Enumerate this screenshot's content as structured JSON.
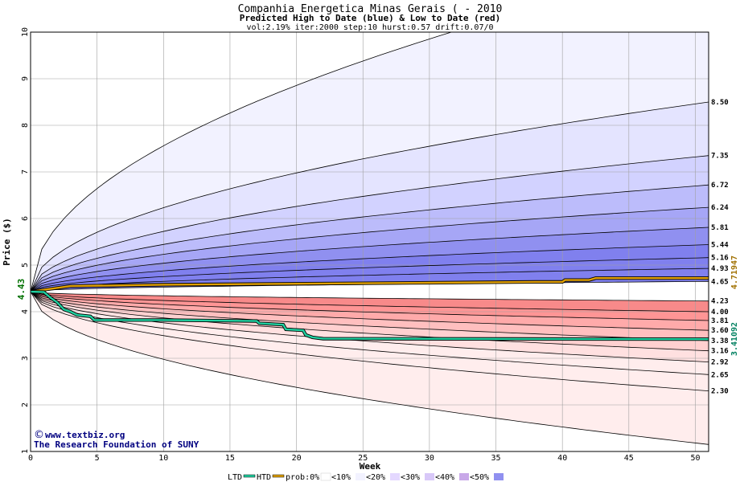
{
  "chart_data": {
    "type": "area",
    "title": "Companhia Energetica Minas Gerais ( - 2010",
    "subtitle": "Predicted High to Date (blue) &  Low to Date (red)",
    "params": "vol:2.19% iter:2000 step:10 hurst:0.57 drift:0.07/0",
    "xlabel": "Week",
    "ylabel": "Price ($)",
    "xlim": [
      0,
      51
    ],
    "ylim": [
      1,
      10
    ],
    "xticks": [
      "0",
      "5",
      "10",
      "15",
      "20",
      "25",
      "30",
      "35",
      "40",
      "45",
      "50"
    ],
    "yticks": [
      "1",
      "2",
      "3",
      "4",
      "5",
      "6",
      "7",
      "8",
      "9",
      "10"
    ],
    "start_price": "4.43",
    "start_value": 4.43,
    "high_percentile_end_values": [
      {
        "label": "8.50",
        "value": 8.5
      },
      {
        "label": "7.35",
        "value": 7.35
      },
      {
        "label": "6.72",
        "value": 6.72
      },
      {
        "label": "6.24",
        "value": 6.24
      },
      {
        "label": "5.81",
        "value": 5.81
      },
      {
        "label": "5.44",
        "value": 5.44
      },
      {
        "label": "5.16",
        "value": 5.16
      },
      {
        "label": "4.93",
        "value": 4.93
      }
    ],
    "low_percentile_end_values": [
      {
        "label": "4.23",
        "value": 4.23
      },
      {
        "label": "4.00",
        "value": 4.0
      },
      {
        "label": "3.81",
        "value": 3.81
      },
      {
        "label": "3.60",
        "value": 3.6
      },
      {
        "label": "3.38",
        "value": 3.38
      },
      {
        "label": "3.16",
        "value": 3.16
      },
      {
        "label": "2.92",
        "value": 2.92
      },
      {
        "label": "2.65",
        "value": 2.65
      },
      {
        "label": "2.30",
        "value": 2.3
      }
    ],
    "median_end": {
      "label": "4.65",
      "value": 4.65
    },
    "outer_high_end": 11.5,
    "outer_low_end": 1.15,
    "htd_series": {
      "name": "HTD",
      "color": "#e0a000",
      "end_label": "4.71947",
      "points": [
        [
          0,
          4.43
        ],
        [
          3,
          4.55
        ],
        [
          10,
          4.58
        ],
        [
          20,
          4.6
        ],
        [
          30,
          4.62
        ],
        [
          38,
          4.64
        ],
        [
          40,
          4.64
        ],
        [
          40.2,
          4.68
        ],
        [
          42,
          4.68
        ],
        [
          42.5,
          4.72
        ],
        [
          51,
          4.72
        ]
      ]
    },
    "ltd_series": {
      "name": "LTD",
      "color": "#20d0a0",
      "end_label": "3.41092",
      "points": [
        [
          0,
          4.43
        ],
        [
          1,
          4.42
        ],
        [
          1.5,
          4.3
        ],
        [
          2,
          4.2
        ],
        [
          2.5,
          4.05
        ],
        [
          3,
          4.0
        ],
        [
          3.5,
          3.93
        ],
        [
          4.5,
          3.9
        ],
        [
          4.8,
          3.82
        ],
        [
          5.5,
          3.82
        ],
        [
          10,
          3.82
        ],
        [
          17,
          3.8
        ],
        [
          17.2,
          3.75
        ],
        [
          19,
          3.72
        ],
        [
          19.2,
          3.62
        ],
        [
          20.5,
          3.6
        ],
        [
          20.7,
          3.5
        ],
        [
          21.2,
          3.45
        ],
        [
          22,
          3.42
        ],
        [
          51,
          3.41
        ]
      ]
    },
    "band_colors": {
      "blue": [
        "#f2f2ff",
        "#e4e4ff",
        "#d2d2ff",
        "#bcbcfb",
        "#a6a6f6",
        "#9090f0",
        "#8080ee"
      ],
      "red": [
        "#ffeded",
        "#ffe0e0",
        "#ffd0d0",
        "#ffbfbf",
        "#ffaaaa",
        "#ff9595",
        "#f88a8a"
      ]
    },
    "credit_1": "www.textbiz.org",
    "credit_2": "The Research Foundation of SUNY",
    "legend": {
      "ltd": "LTD",
      "htd": "HTD",
      "prob": "prob:0%",
      "items": [
        "<10%",
        "<20%",
        "<30%",
        "<40%",
        "<50%"
      ],
      "colors": [
        "#ffffff",
        "#f2f2ff",
        "#e4d8ff",
        "#d8c8f8",
        "#c8a8e8",
        "#9090f0"
      ]
    }
  }
}
